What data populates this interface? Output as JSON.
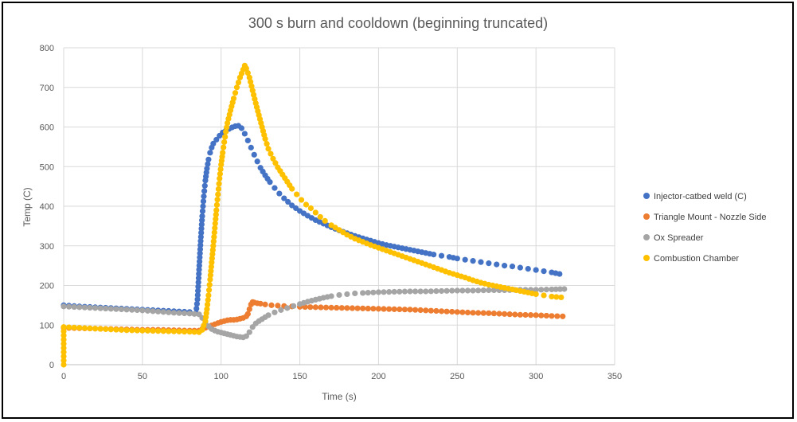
{
  "chart_data": {
    "type": "scatter",
    "title": "300 s burn and cooldown (beginning truncated)",
    "xlabel": "Time (s)",
    "ylabel": "Temp (C)",
    "xlim": [
      0,
      350
    ],
    "ylim": [
      0,
      800
    ],
    "x_ticks": [
      0,
      50,
      100,
      150,
      200,
      250,
      300,
      350
    ],
    "y_ticks": [
      0,
      100,
      200,
      300,
      400,
      500,
      600,
      700,
      800
    ],
    "grid": true,
    "legend_position": "right",
    "series": [
      {
        "name": "Injector-catbed weld (C)",
        "color": "#4472C4",
        "points": [
          [
            0,
            150
          ],
          [
            10,
            147
          ],
          [
            20,
            145
          ],
          [
            30,
            143
          ],
          [
            40,
            141
          ],
          [
            50,
            139
          ],
          [
            60,
            137
          ],
          [
            70,
            135
          ],
          [
            80,
            133
          ],
          [
            84,
            130
          ],
          [
            85,
            165
          ],
          [
            86,
            240
          ],
          [
            87,
            312
          ],
          [
            88,
            375
          ],
          [
            89,
            425
          ],
          [
            90,
            465
          ],
          [
            91,
            495
          ],
          [
            92,
            518
          ],
          [
            93,
            535
          ],
          [
            94,
            548
          ],
          [
            95,
            558
          ],
          [
            97,
            568
          ],
          [
            99,
            578
          ],
          [
            101,
            586
          ],
          [
            103,
            591
          ],
          [
            105,
            595
          ],
          [
            107,
            599
          ],
          [
            109,
            602
          ],
          [
            111,
            603
          ],
          [
            113,
            597
          ],
          [
            115,
            583
          ],
          [
            117,
            566
          ],
          [
            119,
            548
          ],
          [
            121,
            530
          ],
          [
            123,
            513
          ],
          [
            125,
            497
          ],
          [
            128,
            478
          ],
          [
            131,
            461
          ],
          [
            134,
            446
          ],
          [
            137,
            432
          ],
          [
            140,
            420
          ],
          [
            145,
            402
          ],
          [
            150,
            388
          ],
          [
            155,
            376
          ],
          [
            160,
            365
          ],
          [
            165,
            356
          ],
          [
            170,
            347
          ],
          [
            175,
            339
          ],
          [
            180,
            332
          ],
          [
            185,
            325
          ],
          [
            190,
            319
          ],
          [
            195,
            313
          ],
          [
            200,
            307
          ],
          [
            205,
            302
          ],
          [
            210,
            298
          ],
          [
            215,
            294
          ],
          [
            220,
            290
          ],
          [
            225,
            286
          ],
          [
            230,
            282
          ],
          [
            235,
            278
          ],
          [
            240,
            275
          ],
          [
            245,
            272
          ],
          [
            250,
            268
          ],
          [
            255,
            265
          ],
          [
            260,
            262
          ],
          [
            265,
            259
          ],
          [
            270,
            256
          ],
          [
            275,
            253
          ],
          [
            280,
            250
          ],
          [
            285,
            248
          ],
          [
            290,
            245
          ],
          [
            295,
            242
          ],
          [
            300,
            239
          ],
          [
            305,
            236
          ],
          [
            310,
            233
          ],
          [
            315,
            229
          ]
        ]
      },
      {
        "name": "Triangle Mount - Nozzle Side",
        "color": "#ED7D31",
        "points": [
          [
            0,
            93
          ],
          [
            10,
            92
          ],
          [
            20,
            91
          ],
          [
            30,
            90
          ],
          [
            40,
            89
          ],
          [
            50,
            88
          ],
          [
            60,
            88
          ],
          [
            70,
            87
          ],
          [
            80,
            86
          ],
          [
            86,
            86
          ],
          [
            88,
            90
          ],
          [
            90,
            93
          ],
          [
            92,
            96
          ],
          [
            94,
            99
          ],
          [
            96,
            102
          ],
          [
            98,
            105
          ],
          [
            100,
            108
          ],
          [
            102,
            110
          ],
          [
            104,
            112
          ],
          [
            106,
            113
          ],
          [
            108,
            113
          ],
          [
            110,
            114
          ],
          [
            112,
            116
          ],
          [
            114,
            118
          ],
          [
            116,
            122
          ],
          [
            117,
            128
          ],
          [
            118,
            140
          ],
          [
            119,
            152
          ],
          [
            120,
            158
          ],
          [
            121,
            157
          ],
          [
            123,
            155
          ],
          [
            125,
            154
          ],
          [
            128,
            152
          ],
          [
            132,
            150
          ],
          [
            136,
            149
          ],
          [
            140,
            148
          ],
          [
            145,
            147
          ],
          [
            150,
            146
          ],
          [
            160,
            145
          ],
          [
            170,
            144
          ],
          [
            180,
            143
          ],
          [
            190,
            142
          ],
          [
            200,
            141
          ],
          [
            210,
            140
          ],
          [
            220,
            139
          ],
          [
            230,
            137
          ],
          [
            240,
            135
          ],
          [
            250,
            133
          ],
          [
            260,
            131
          ],
          [
            270,
            130
          ],
          [
            280,
            128
          ],
          [
            290,
            126
          ],
          [
            300,
            125
          ],
          [
            310,
            123
          ],
          [
            317,
            122
          ]
        ]
      },
      {
        "name": "Ox Spreader",
        "color": "#A5A5A5",
        "points": [
          [
            0,
            147
          ],
          [
            10,
            145
          ],
          [
            20,
            143
          ],
          [
            30,
            141
          ],
          [
            40,
            139
          ],
          [
            50,
            137
          ],
          [
            60,
            134
          ],
          [
            70,
            131
          ],
          [
            80,
            129
          ],
          [
            86,
            127
          ],
          [
            88,
            118
          ],
          [
            90,
            107
          ],
          [
            92,
            97
          ],
          [
            94,
            90
          ],
          [
            96,
            86
          ],
          [
            98,
            83
          ],
          [
            100,
            81
          ],
          [
            102,
            79
          ],
          [
            104,
            77
          ],
          [
            106,
            75
          ],
          [
            108,
            73
          ],
          [
            110,
            71
          ],
          [
            112,
            70
          ],
          [
            114,
            69
          ],
          [
            116,
            72
          ],
          [
            118,
            82
          ],
          [
            120,
            95
          ],
          [
            122,
            104
          ],
          [
            124,
            110
          ],
          [
            126,
            115
          ],
          [
            128,
            120
          ],
          [
            130,
            125
          ],
          [
            134,
            132
          ],
          [
            138,
            138
          ],
          [
            142,
            143
          ],
          [
            146,
            148
          ],
          [
            150,
            153
          ],
          [
            155,
            159
          ],
          [
            160,
            164
          ],
          [
            165,
            169
          ],
          [
            170,
            173
          ],
          [
            175,
            176
          ],
          [
            180,
            178
          ],
          [
            185,
            180
          ],
          [
            190,
            181
          ],
          [
            200,
            183
          ],
          [
            210,
            184
          ],
          [
            220,
            185
          ],
          [
            230,
            185
          ],
          [
            240,
            186
          ],
          [
            250,
            187
          ],
          [
            260,
            187
          ],
          [
            270,
            188
          ],
          [
            280,
            188
          ],
          [
            290,
            189
          ],
          [
            300,
            189
          ],
          [
            310,
            190
          ],
          [
            318,
            191
          ]
        ]
      },
      {
        "name": "Combustion Chamber",
        "color": "#FFC000",
        "points": [
          [
            0,
            0
          ],
          [
            0,
            95
          ],
          [
            10,
            93
          ],
          [
            20,
            91
          ],
          [
            30,
            89
          ],
          [
            40,
            87
          ],
          [
            50,
            86
          ],
          [
            60,
            85
          ],
          [
            70,
            84
          ],
          [
            80,
            83
          ],
          [
            86,
            82
          ],
          [
            88,
            88
          ],
          [
            90,
            110
          ],
          [
            91,
            140
          ],
          [
            92,
            175
          ],
          [
            93,
            215
          ],
          [
            94,
            258
          ],
          [
            95,
            300
          ],
          [
            96,
            345
          ],
          [
            97,
            390
          ],
          [
            98,
            430
          ],
          [
            99,
            470
          ],
          [
            100,
            505
          ],
          [
            101,
            535
          ],
          [
            102,
            562
          ],
          [
            103,
            588
          ],
          [
            104,
            610
          ],
          [
            106,
            642
          ],
          [
            108,
            672
          ],
          [
            110,
            700
          ],
          [
            112,
            725
          ],
          [
            114,
            745
          ],
          [
            115,
            755
          ],
          [
            116,
            748
          ],
          [
            118,
            725
          ],
          [
            120,
            692
          ],
          [
            122,
            660
          ],
          [
            124,
            630
          ],
          [
            126,
            600
          ],
          [
            128,
            570
          ],
          [
            130,
            545
          ],
          [
            133,
            520
          ],
          [
            136,
            498
          ],
          [
            139,
            480
          ],
          [
            142,
            462
          ],
          [
            145,
            444
          ],
          [
            148,
            430
          ],
          [
            151,
            416
          ],
          [
            154,
            404
          ],
          [
            157,
            395
          ],
          [
            160,
            384
          ],
          [
            163,
            373
          ],
          [
            166,
            363
          ],
          [
            170,
            352
          ],
          [
            175,
            340
          ],
          [
            180,
            328
          ],
          [
            185,
            318
          ],
          [
            190,
            310
          ],
          [
            195,
            302
          ],
          [
            200,
            295
          ],
          [
            205,
            288
          ],
          [
            210,
            281
          ],
          [
            215,
            274
          ],
          [
            220,
            267
          ],
          [
            225,
            260
          ],
          [
            230,
            253
          ],
          [
            235,
            246
          ],
          [
            240,
            239
          ],
          [
            245,
            232
          ],
          [
            250,
            226
          ],
          [
            255,
            220
          ],
          [
            260,
            213
          ],
          [
            265,
            207
          ],
          [
            270,
            202
          ],
          [
            275,
            198
          ],
          [
            280,
            194
          ],
          [
            285,
            190
          ],
          [
            290,
            186
          ],
          [
            295,
            182
          ],
          [
            300,
            178
          ],
          [
            305,
            175
          ],
          [
            310,
            172
          ],
          [
            316,
            170
          ]
        ]
      }
    ]
  }
}
